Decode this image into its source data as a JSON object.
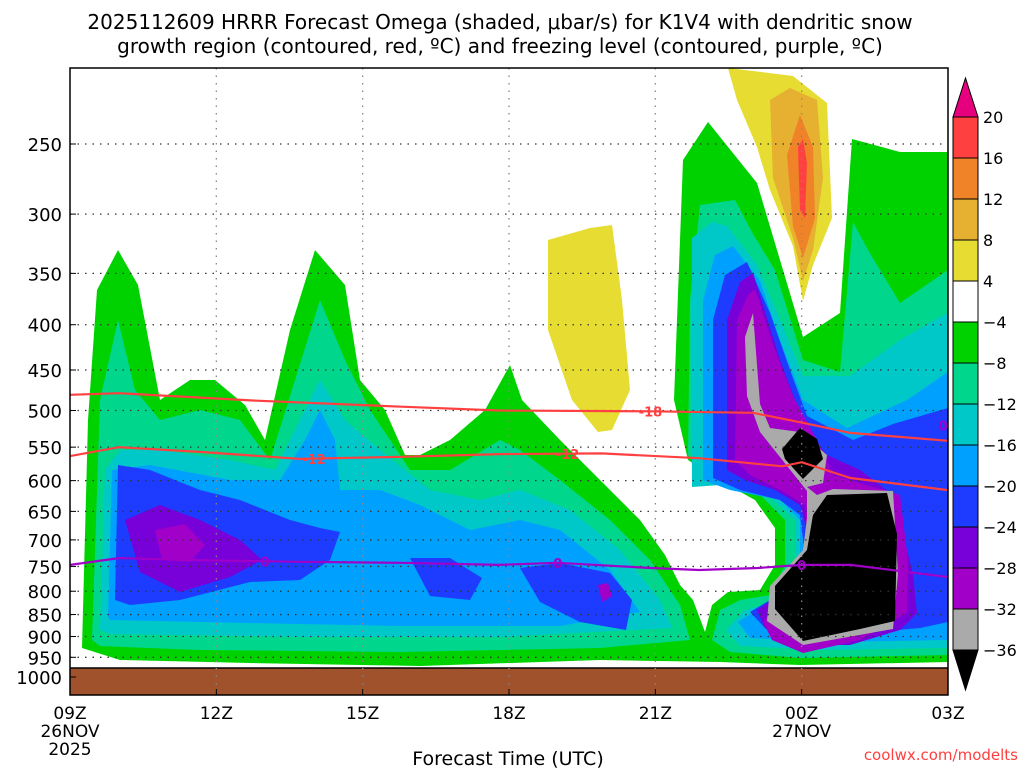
{
  "chart_data": {
    "type": "heatmap",
    "title": [
      "2025112609 HRRR Forecast Omega (shaded, μbar/s) for K1V4 with dendritic snow",
      "growth region (contoured, red, ºC) and freezing level (contoured, purple, ºC)"
    ],
    "xlabel": "Forecast Time (UTC)",
    "ylabel": "",
    "x_range_hours": [
      0,
      18
    ],
    "x_ticks": [
      {
        "hour": 0,
        "label": "09Z",
        "sub": "26NOV",
        "sub2": "2025"
      },
      {
        "hour": 3,
        "label": "12Z",
        "sub": "",
        "sub2": ""
      },
      {
        "hour": 6,
        "label": "15Z",
        "sub": "",
        "sub2": ""
      },
      {
        "hour": 9,
        "label": "18Z",
        "sub": "",
        "sub2": ""
      },
      {
        "hour": 12,
        "label": "21Z",
        "sub": "",
        "sub2": ""
      },
      {
        "hour": 15,
        "label": "00Z",
        "sub": "27NOV",
        "sub2": ""
      },
      {
        "hour": 18,
        "label": "03Z",
        "sub": "",
        "sub2": ""
      }
    ],
    "y_axis": "pressure (hPa), log scale, inverted",
    "y_ticks": [
      250,
      300,
      350,
      400,
      450,
      500,
      550,
      600,
      650,
      700,
      750,
      800,
      850,
      900,
      950,
      1000
    ],
    "grid": true,
    "colorbar": {
      "levels": [
        "20",
        "16",
        "12",
        "8",
        "4",
        "-4",
        "-8",
        "-12",
        "-16",
        "-20",
        "-24",
        "-28",
        "-32",
        "-36"
      ],
      "colors": [
        "#ff4040",
        "#f08228",
        "#e6b030",
        "#e6dc32",
        "#ffffff",
        "#00d200",
        "#00d68c",
        "#00c8c8",
        "#00a0ff",
        "#1e3cff",
        "#7800d8",
        "#a000c8",
        "#aaaaaa"
      ],
      "over_color": "#e6007e",
      "under_color": "#000000",
      "placement": "right"
    },
    "contours": [
      {
        "name": "dendritic -18C",
        "color": "#ff4040",
        "value": -18,
        "points": [
          [
            0,
            480
          ],
          [
            1.0,
            478
          ],
          [
            3.7,
            487
          ],
          [
            6.8,
            495
          ],
          [
            8.8,
            500
          ],
          [
            11.9,
            501
          ],
          [
            14.0,
            503
          ],
          [
            15.0,
            516
          ],
          [
            16.0,
            530
          ],
          [
            18.0,
            541
          ]
        ]
      },
      {
        "name": "dendritic -12C",
        "color": "#ff4040",
        "value": -12,
        "points": [
          [
            0,
            563
          ],
          [
            1.0,
            550
          ],
          [
            2.7,
            557
          ],
          [
            4.7,
            567
          ],
          [
            6.8,
            564
          ],
          [
            8.8,
            560
          ],
          [
            10.9,
            559
          ],
          [
            12.9,
            566
          ],
          [
            14.6,
            578
          ],
          [
            15.0,
            572
          ],
          [
            16.0,
            596
          ],
          [
            18.0,
            615
          ]
        ]
      },
      {
        "name": "freezing level 0C",
        "color": "#a000c8",
        "value": 0,
        "points": [
          [
            0,
            747
          ],
          [
            1.0,
            734
          ],
          [
            2.7,
            738
          ],
          [
            4.7,
            741
          ],
          [
            6.8,
            743
          ],
          [
            8.8,
            747
          ],
          [
            10.0,
            743
          ],
          [
            11.9,
            753
          ],
          [
            12.9,
            757
          ],
          [
            14.1,
            753
          ],
          [
            15.0,
            747
          ],
          [
            16.0,
            747
          ],
          [
            18.0,
            771
          ]
        ]
      }
    ],
    "contour_labels": [
      {
        "hour": 11.9,
        "p": 501,
        "text": "-18",
        "color": "#ff4040"
      },
      {
        "hour": 5.0,
        "p": 567,
        "text": "-12",
        "color": "#ff4040"
      },
      {
        "hour": 10.2,
        "p": 560,
        "text": "-12",
        "color": "#ff4040"
      },
      {
        "hour": 4.0,
        "p": 740,
        "text": "0",
        "color": "#a000c8"
      },
      {
        "hour": 10.0,
        "p": 743,
        "text": "0",
        "color": "#a000c8"
      },
      {
        "hour": 15.0,
        "p": 747,
        "text": "0",
        "color": "#a000c8"
      },
      {
        "hour": 10.97,
        "p": 804,
        "text": "0",
        "color": "#a000c8"
      },
      {
        "hour": 17.9,
        "p": 520,
        "text": "0",
        "color": "#a000c8"
      }
    ],
    "ground_color": "#a0522d"
  },
  "watermark": "coolwx.com/modelts"
}
